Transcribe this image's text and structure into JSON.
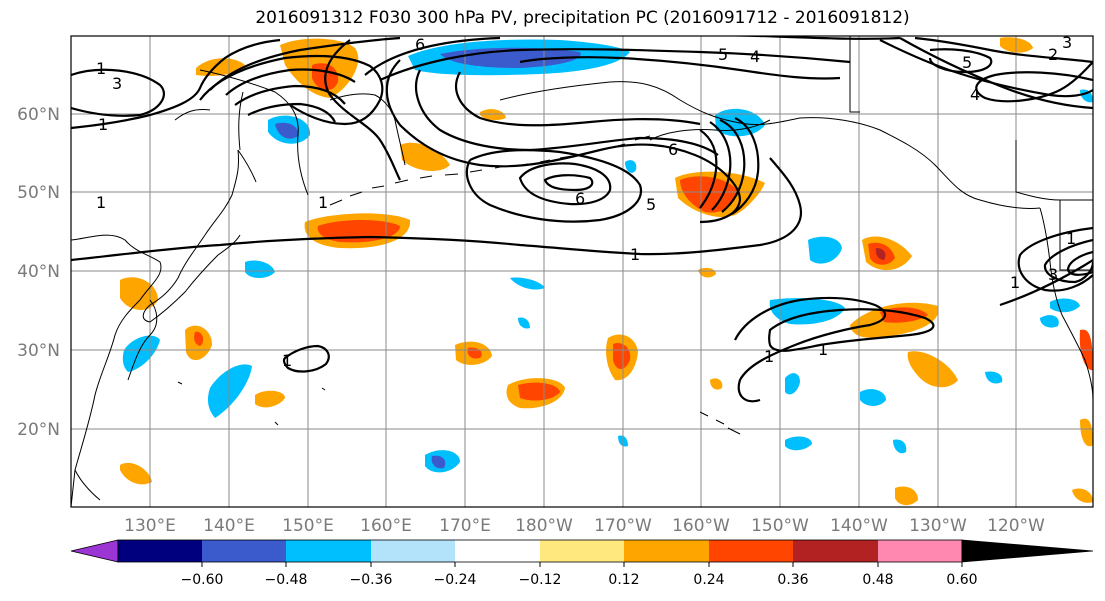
{
  "title": "2016091312 F030 300 hPa PV, precipitation PC (2016091712 - 2016091812)",
  "lat_labels": [
    {
      "text": "60°N",
      "lat": 60
    },
    {
      "text": "50°N",
      "lat": 50
    },
    {
      "text": "40°N",
      "lat": 40
    },
    {
      "text": "30°N",
      "lat": 30
    },
    {
      "text": "20°N",
      "lat": 20
    }
  ],
  "lon_labels": [
    "130°E",
    "140°E",
    "150°E",
    "160°E",
    "170°E",
    "180°W",
    "170°W",
    "160°W",
    "150°W",
    "140°W",
    "130°W",
    "120°W"
  ],
  "colorbar": {
    "ticks": [
      "−0.60",
      "−0.48",
      "−0.36",
      "−0.24",
      "−0.12",
      "0.12",
      "0.24",
      "0.36",
      "0.48",
      "0.60"
    ],
    "colors": [
      "#9b35d4",
      "#00007f",
      "#3b5bcd",
      "#00bfff",
      "#b3e3fb",
      "#ffffff",
      "#ffe97f",
      "#ffa500",
      "#ff4500",
      "#b22222",
      "#ff88b0"
    ]
  },
  "contour_labels": [
    "3",
    "1",
    "1",
    "1",
    "1",
    "6",
    "6",
    "5",
    "4",
    "1",
    "5",
    "6",
    "1",
    "1",
    "1",
    "1",
    "5",
    "2",
    "3",
    "3",
    "4",
    "1"
  ]
}
